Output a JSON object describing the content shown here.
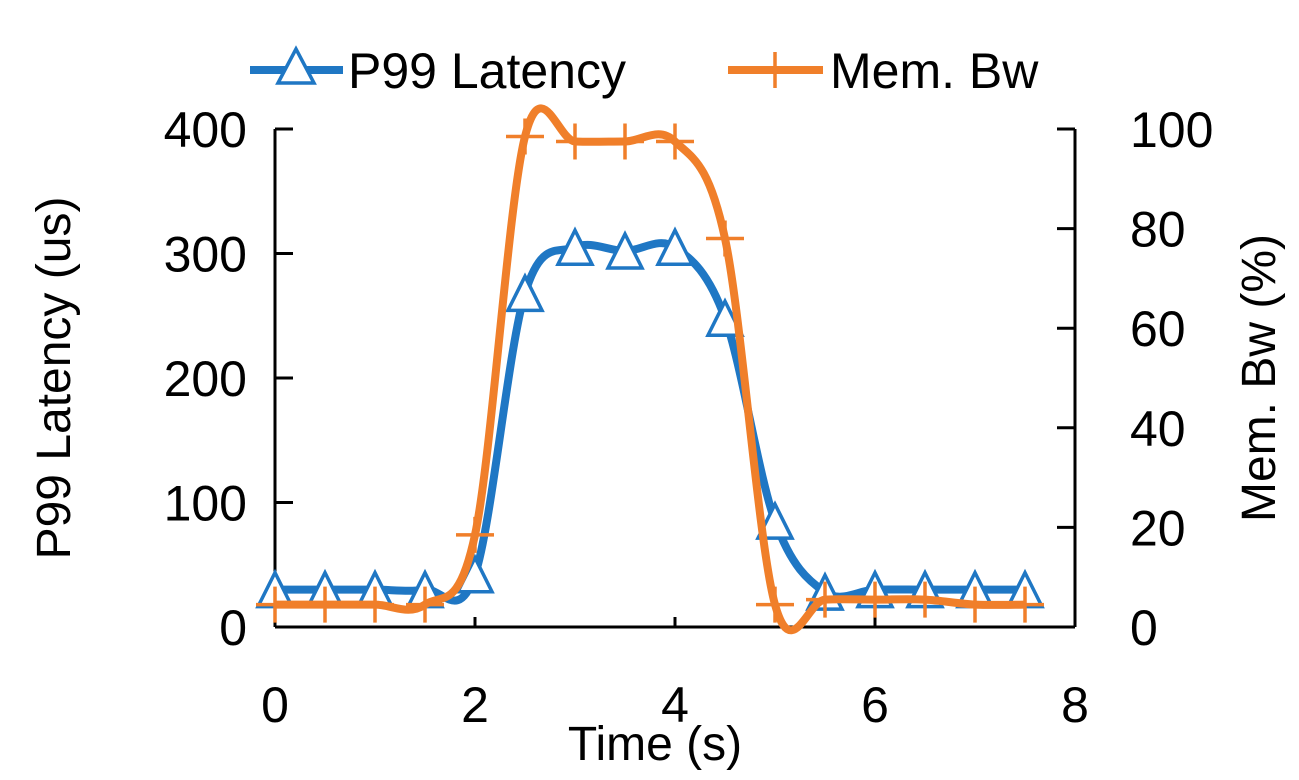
{
  "chart_data": {
    "type": "line",
    "title": "",
    "xlabel": "Time (s)",
    "ylabel_left": "P99 Latency (us)",
    "ylabel_right": "Mem. Bw (%)",
    "xlim": [
      0,
      8
    ],
    "ylim_left": [
      0,
      400
    ],
    "ylim_right": [
      0,
      100
    ],
    "x_ticks": [
      "0",
      "2",
      "4",
      "6",
      "8"
    ],
    "y_left_ticks": [
      "0",
      "100",
      "200",
      "300",
      "400"
    ],
    "y_right_ticks": [
      "0",
      "20",
      "40",
      "60",
      "80",
      "100"
    ],
    "grid": false,
    "legend_position": "top",
    "series": [
      {
        "name": "P99 Latency",
        "axis": "left",
        "marker": "triangle",
        "color": "#1f77c4",
        "x": [
          0,
          0.5,
          1,
          1.5,
          2,
          2.5,
          3,
          3.5,
          4,
          4.5,
          5,
          5.5,
          6,
          6.5,
          7,
          7.5
        ],
        "values": [
          30,
          30,
          30,
          30,
          42,
          268,
          305,
          302,
          305,
          248,
          85,
          28,
          30,
          30,
          30,
          30
        ]
      },
      {
        "name": "Mem. Bw",
        "axis": "right",
        "marker": "plus",
        "color": "#f07f2a",
        "x": [
          0,
          0.5,
          1,
          1.5,
          2,
          2.5,
          3,
          3.5,
          4,
          4.5,
          5,
          5.5,
          6,
          6.5,
          7,
          7.5
        ],
        "values": [
          4.5,
          4.5,
          4.5,
          4.5,
          18.5,
          98.5,
          97.5,
          97.5,
          97.5,
          78,
          4.5,
          5.5,
          5.5,
          5.5,
          4.5,
          4.5
        ]
      }
    ]
  }
}
